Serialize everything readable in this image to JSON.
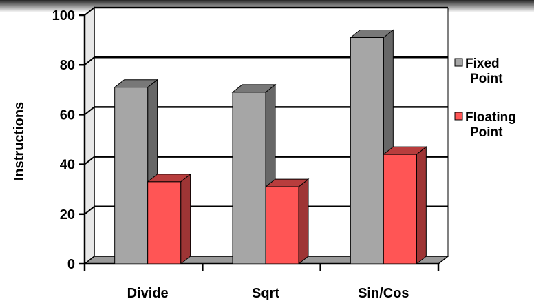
{
  "chart_data": {
    "type": "bar",
    "categories": [
      "Divide",
      "Sqrt",
      "Sin/Cos"
    ],
    "series": [
      {
        "name": "Fixed Point",
        "values": [
          71,
          69,
          91
        ],
        "color": "#a6a6a6"
      },
      {
        "name": "Floating Point",
        "values": [
          33,
          31,
          44
        ],
        "color": "#ff5555"
      }
    ],
    "legend_lines": [
      [
        "Fixed",
        "Point"
      ],
      [
        "Floating",
        "Point"
      ]
    ],
    "ylabel": "Instructions",
    "ylim": [
      0,
      100
    ],
    "yticks": [
      0,
      20,
      40,
      60,
      80,
      100
    ],
    "grid": true,
    "legend": "right",
    "style": "3d-clustered"
  }
}
